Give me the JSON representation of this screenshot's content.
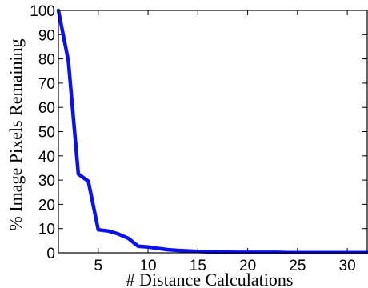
{
  "chart_data": {
    "type": "line",
    "title": "",
    "xlabel": "# Distance Calculations",
    "ylabel": "% Image Pixels Remaining",
    "xlim": [
      1,
      32
    ],
    "ylim": [
      0,
      100
    ],
    "xticks": [
      5,
      10,
      15,
      20,
      25,
      30
    ],
    "yticks": [
      0,
      10,
      20,
      30,
      40,
      50,
      60,
      70,
      80,
      90,
      100
    ],
    "grid": false,
    "legend": "none",
    "series": [
      {
        "color": "#0b10f0",
        "x": [
          1,
          2,
          3,
          4,
          5,
          6,
          7,
          8,
          9,
          10,
          11,
          12,
          13,
          14,
          15,
          16,
          17,
          18,
          19,
          20,
          21,
          22,
          23,
          24,
          25,
          26,
          27,
          28,
          29,
          30,
          31,
          32
        ],
        "y": [
          100,
          79,
          32.5,
          29.5,
          9.5,
          9,
          7.8,
          6,
          2.7,
          2.4,
          1.8,
          1.3,
          1,
          0.8,
          0.6,
          0.4,
          0.3,
          0.25,
          0.2,
          0.2,
          0.2,
          0.2,
          0.2,
          0.1,
          0.1,
          0.1,
          0.1,
          0.1,
          0.1,
          0.1,
          0.1,
          0.1
        ]
      }
    ]
  }
}
